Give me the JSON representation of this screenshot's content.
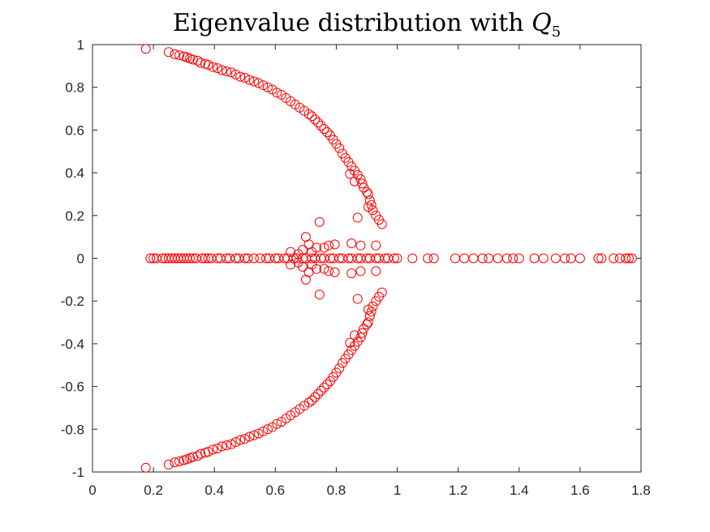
{
  "chart_data": {
    "type": "scatter",
    "title": {
      "text": "Eigenvalue distribution with ",
      "symbol": "Q",
      "subscript": "5"
    },
    "xlabel": "",
    "ylabel": "",
    "xlim": [
      0,
      1.8
    ],
    "ylim": [
      -1,
      1
    ],
    "xticks": [
      0,
      0.2,
      0.4,
      0.6,
      0.8,
      1,
      1.2,
      1.4,
      1.6,
      1.8
    ],
    "xtick_labels": [
      "0",
      "0.2",
      "0.4",
      "0.6",
      "0.8",
      "1",
      "1.2",
      "1.4",
      "1.6",
      "1.8"
    ],
    "yticks": [
      -1,
      -0.8,
      -0.6,
      -0.4,
      -0.2,
      0,
      0.2,
      0.4,
      0.6,
      0.8,
      1
    ],
    "ytick_labels": [
      "-1",
      "-0.8",
      "-0.6",
      "-0.4",
      "-0.2",
      "0",
      "0.2",
      "0.4",
      "0.6",
      "0.8",
      "1"
    ],
    "grid": false,
    "marker": "open-circle",
    "marker_color": "#ff0000",
    "series": [
      {
        "points_upper_arc": [
          [
            0.175,
            0.98
          ],
          [
            0.25,
            0.965
          ],
          [
            0.27,
            0.955
          ],
          [
            0.285,
            0.95
          ],
          [
            0.3,
            0.945
          ],
          [
            0.31,
            0.94
          ],
          [
            0.32,
            0.935
          ],
          [
            0.33,
            0.93
          ],
          [
            0.345,
            0.925
          ],
          [
            0.355,
            0.915
          ],
          [
            0.37,
            0.91
          ],
          [
            0.38,
            0.905
          ],
          [
            0.395,
            0.895
          ],
          [
            0.41,
            0.89
          ],
          [
            0.425,
            0.88
          ],
          [
            0.44,
            0.875
          ],
          [
            0.455,
            0.87
          ],
          [
            0.47,
            0.86
          ],
          [
            0.485,
            0.85
          ],
          [
            0.5,
            0.845
          ],
          [
            0.515,
            0.835
          ],
          [
            0.53,
            0.828
          ],
          [
            0.545,
            0.82
          ],
          [
            0.56,
            0.81
          ],
          [
            0.575,
            0.8
          ],
          [
            0.59,
            0.79
          ],
          [
            0.605,
            0.775
          ],
          [
            0.62,
            0.765
          ],
          [
            0.635,
            0.75
          ],
          [
            0.65,
            0.735
          ],
          [
            0.665,
            0.72
          ],
          [
            0.68,
            0.705
          ],
          [
            0.695,
            0.69
          ],
          [
            0.71,
            0.675
          ],
          [
            0.72,
            0.665
          ],
          [
            0.73,
            0.65
          ],
          [
            0.74,
            0.635
          ],
          [
            0.75,
            0.62
          ],
          [
            0.76,
            0.605
          ],
          [
            0.77,
            0.59
          ],
          [
            0.78,
            0.575
          ],
          [
            0.79,
            0.555
          ],
          [
            0.8,
            0.535
          ],
          [
            0.81,
            0.515
          ],
          [
            0.82,
            0.49
          ],
          [
            0.83,
            0.47
          ],
          [
            0.84,
            0.45
          ],
          [
            0.85,
            0.43
          ],
          [
            0.86,
            0.41
          ],
          [
            0.87,
            0.39
          ],
          [
            0.88,
            0.37
          ],
          [
            0.885,
            0.35
          ],
          [
            0.89,
            0.33
          ],
          [
            0.9,
            0.31
          ],
          [
            0.905,
            0.3
          ],
          [
            0.91,
            0.27
          ],
          [
            0.915,
            0.25
          ],
          [
            0.92,
            0.225
          ],
          [
            0.93,
            0.2
          ],
          [
            0.94,
            0.18
          ],
          [
            0.95,
            0.16
          ],
          [
            0.905,
            0.24
          ],
          [
            0.87,
            0.19
          ],
          [
            0.86,
            0.36
          ],
          [
            0.845,
            0.395
          ]
        ]
      },
      {
        "points_lower_arc": [
          [
            0.175,
            -0.98
          ],
          [
            0.25,
            -0.965
          ],
          [
            0.27,
            -0.955
          ],
          [
            0.285,
            -0.95
          ],
          [
            0.3,
            -0.945
          ],
          [
            0.31,
            -0.94
          ],
          [
            0.32,
            -0.935
          ],
          [
            0.33,
            -0.93
          ],
          [
            0.345,
            -0.925
          ],
          [
            0.355,
            -0.915
          ],
          [
            0.37,
            -0.91
          ],
          [
            0.38,
            -0.905
          ],
          [
            0.395,
            -0.895
          ],
          [
            0.41,
            -0.89
          ],
          [
            0.425,
            -0.88
          ],
          [
            0.44,
            -0.875
          ],
          [
            0.455,
            -0.87
          ],
          [
            0.47,
            -0.86
          ],
          [
            0.485,
            -0.85
          ],
          [
            0.5,
            -0.845
          ],
          [
            0.515,
            -0.835
          ],
          [
            0.53,
            -0.828
          ],
          [
            0.545,
            -0.82
          ],
          [
            0.56,
            -0.81
          ],
          [
            0.575,
            -0.8
          ],
          [
            0.59,
            -0.79
          ],
          [
            0.605,
            -0.775
          ],
          [
            0.62,
            -0.765
          ],
          [
            0.635,
            -0.75
          ],
          [
            0.65,
            -0.735
          ],
          [
            0.665,
            -0.72
          ],
          [
            0.68,
            -0.705
          ],
          [
            0.695,
            -0.69
          ],
          [
            0.71,
            -0.675
          ],
          [
            0.72,
            -0.665
          ],
          [
            0.73,
            -0.65
          ],
          [
            0.74,
            -0.635
          ],
          [
            0.75,
            -0.62
          ],
          [
            0.76,
            -0.605
          ],
          [
            0.77,
            -0.59
          ],
          [
            0.78,
            -0.575
          ],
          [
            0.79,
            -0.555
          ],
          [
            0.8,
            -0.535
          ],
          [
            0.81,
            -0.515
          ],
          [
            0.82,
            -0.49
          ],
          [
            0.83,
            -0.47
          ],
          [
            0.84,
            -0.45
          ],
          [
            0.85,
            -0.43
          ],
          [
            0.86,
            -0.41
          ],
          [
            0.87,
            -0.39
          ],
          [
            0.88,
            -0.37
          ],
          [
            0.885,
            -0.35
          ],
          [
            0.89,
            -0.33
          ],
          [
            0.9,
            -0.31
          ],
          [
            0.905,
            -0.3
          ],
          [
            0.91,
            -0.27
          ],
          [
            0.915,
            -0.25
          ],
          [
            0.92,
            -0.225
          ],
          [
            0.93,
            -0.2
          ],
          [
            0.94,
            -0.18
          ],
          [
            0.95,
            -0.16
          ],
          [
            0.905,
            -0.24
          ],
          [
            0.87,
            -0.19
          ],
          [
            0.86,
            -0.36
          ],
          [
            0.845,
            -0.395
          ]
        ]
      },
      {
        "points_near_axis": [
          [
            0.745,
            0.17
          ],
          [
            0.745,
            -0.17
          ],
          [
            0.7,
            0.1
          ],
          [
            0.7,
            -0.1
          ],
          [
            0.795,
            0.065
          ],
          [
            0.795,
            -0.065
          ],
          [
            0.85,
            0.07
          ],
          [
            0.85,
            -0.07
          ],
          [
            0.88,
            0.06
          ],
          [
            0.88,
            -0.06
          ],
          [
            0.65,
            0.03
          ],
          [
            0.65,
            -0.03
          ],
          [
            0.675,
            0.02
          ],
          [
            0.675,
            -0.02
          ],
          [
            0.69,
            0.04
          ],
          [
            0.69,
            -0.04
          ],
          [
            0.72,
            0.03
          ],
          [
            0.72,
            -0.03
          ],
          [
            0.735,
            0.05
          ],
          [
            0.735,
            -0.05
          ],
          [
            0.76,
            0.05
          ],
          [
            0.76,
            -0.05
          ],
          [
            0.775,
            0.06
          ],
          [
            0.775,
            -0.06
          ],
          [
            0.71,
            0.065
          ],
          [
            0.71,
            -0.065
          ],
          [
            0.93,
            0.06
          ],
          [
            0.93,
            -0.06
          ]
        ]
      },
      {
        "points_real_axis": [
          [
            0.19,
            0
          ],
          [
            0.2,
            0
          ],
          [
            0.21,
            0
          ],
          [
            0.23,
            0
          ],
          [
            0.24,
            0
          ],
          [
            0.25,
            0
          ],
          [
            0.26,
            0
          ],
          [
            0.27,
            0
          ],
          [
            0.28,
            0
          ],
          [
            0.29,
            0
          ],
          [
            0.3,
            0
          ],
          [
            0.31,
            0
          ],
          [
            0.32,
            0
          ],
          [
            0.33,
            0
          ],
          [
            0.34,
            0
          ],
          [
            0.36,
            0
          ],
          [
            0.37,
            0
          ],
          [
            0.38,
            0
          ],
          [
            0.39,
            0
          ],
          [
            0.41,
            0
          ],
          [
            0.42,
            0
          ],
          [
            0.44,
            0
          ],
          [
            0.45,
            0
          ],
          [
            0.47,
            0
          ],
          [
            0.48,
            0
          ],
          [
            0.5,
            0
          ],
          [
            0.51,
            0
          ],
          [
            0.53,
            0
          ],
          [
            0.55,
            0
          ],
          [
            0.57,
            0
          ],
          [
            0.58,
            0
          ],
          [
            0.6,
            0
          ],
          [
            0.61,
            0
          ],
          [
            0.63,
            0
          ],
          [
            0.64,
            0
          ],
          [
            0.66,
            0
          ],
          [
            0.67,
            0
          ],
          [
            0.69,
            0
          ],
          [
            0.7,
            0
          ],
          [
            0.72,
            0
          ],
          [
            0.73,
            0
          ],
          [
            0.75,
            0
          ],
          [
            0.76,
            0
          ],
          [
            0.78,
            0
          ],
          [
            0.79,
            0
          ],
          [
            0.81,
            0
          ],
          [
            0.82,
            0
          ],
          [
            0.84,
            0
          ],
          [
            0.85,
            0
          ],
          [
            0.87,
            0
          ],
          [
            0.88,
            0
          ],
          [
            0.9,
            0
          ],
          [
            0.91,
            0
          ],
          [
            0.93,
            0
          ],
          [
            0.94,
            0
          ],
          [
            0.96,
            0
          ],
          [
            0.97,
            0
          ],
          [
            0.99,
            0
          ],
          [
            1.0,
            0
          ],
          [
            1.05,
            0
          ],
          [
            1.1,
            0
          ],
          [
            1.12,
            0
          ],
          [
            1.19,
            0
          ],
          [
            1.22,
            0
          ],
          [
            1.25,
            0
          ],
          [
            1.28,
            0
          ],
          [
            1.3,
            0
          ],
          [
            1.33,
            0
          ],
          [
            1.36,
            0
          ],
          [
            1.38,
            0
          ],
          [
            1.4,
            0
          ],
          [
            1.45,
            0
          ],
          [
            1.48,
            0
          ],
          [
            1.52,
            0
          ],
          [
            1.55,
            0
          ],
          [
            1.57,
            0
          ],
          [
            1.6,
            0
          ],
          [
            1.66,
            0
          ],
          [
            1.67,
            0
          ],
          [
            1.71,
            0
          ],
          [
            1.73,
            0
          ],
          [
            1.75,
            0
          ],
          [
            1.76,
            0
          ],
          [
            1.77,
            0
          ]
        ]
      }
    ]
  }
}
